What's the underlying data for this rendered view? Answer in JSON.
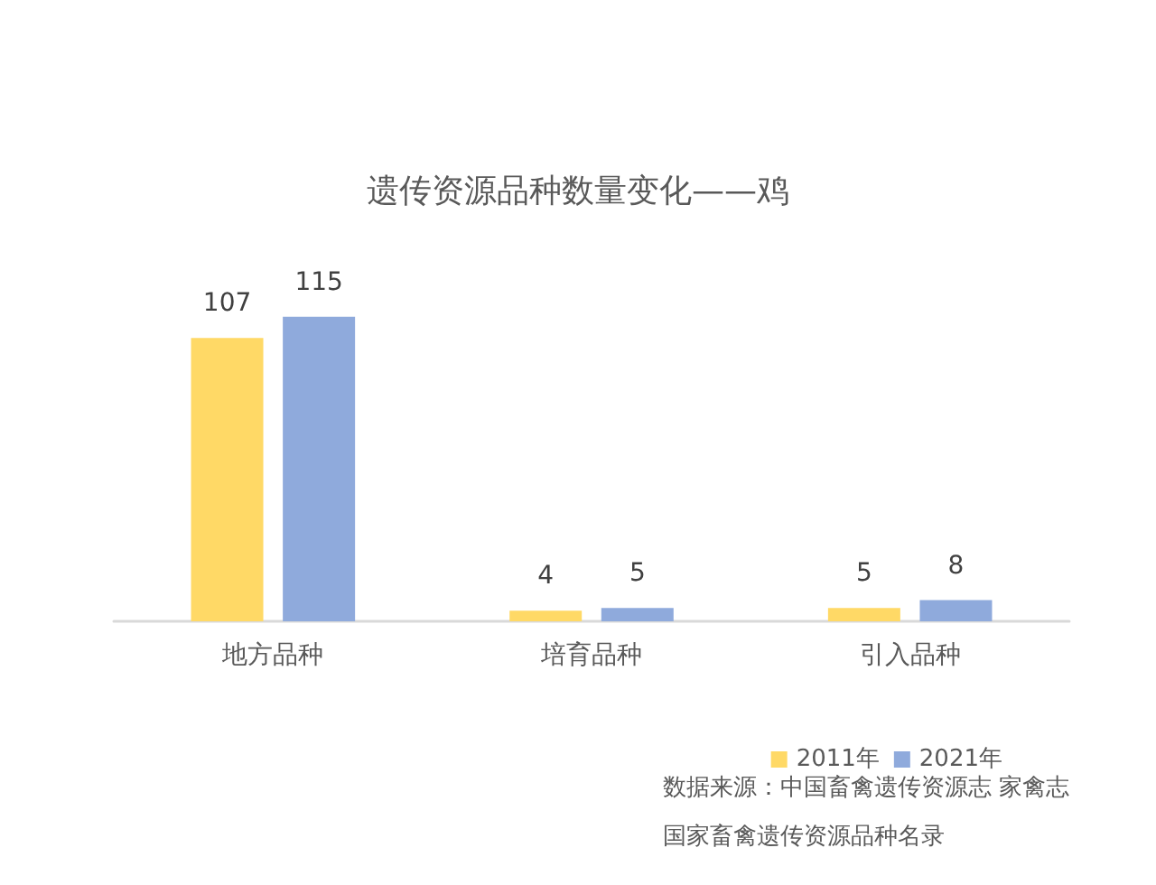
{
  "chart_data": {
    "type": "bar",
    "title": "遗传资源品种数量变化——鸡",
    "categories": [
      "地方品种",
      "培育品种",
      "引入品种"
    ],
    "series": [
      {
        "name": "2011年",
        "color": "#ffd966",
        "values": [
          107,
          4,
          5
        ]
      },
      {
        "name": "2021年",
        "color": "#8faadc",
        "values": [
          115,
          5,
          8
        ]
      }
    ],
    "data_labels": true,
    "legend": "bottom right",
    "annotations": [
      "数据来源：中国畜禽遗传资源志 家禽志",
      "国家畜禽遗传资源品种名录"
    ]
  }
}
